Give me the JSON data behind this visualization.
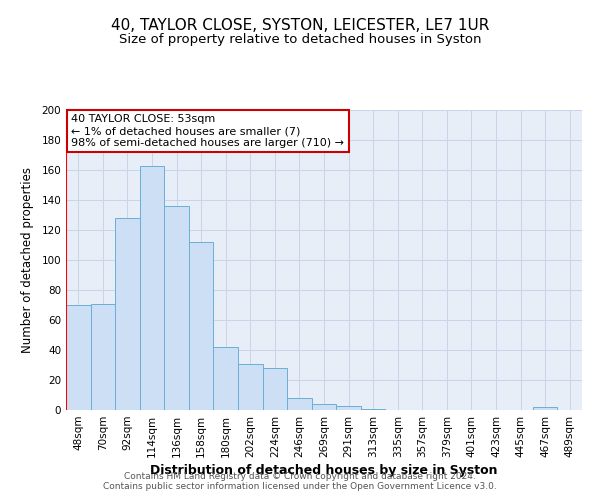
{
  "title": "40, TAYLOR CLOSE, SYSTON, LEICESTER, LE7 1UR",
  "subtitle": "Size of property relative to detached houses in Syston",
  "xlabel": "Distribution of detached houses by size in Syston",
  "ylabel": "Number of detached properties",
  "bar_labels": [
    "48sqm",
    "70sqm",
    "92sqm",
    "114sqm",
    "136sqm",
    "158sqm",
    "180sqm",
    "202sqm",
    "224sqm",
    "246sqm",
    "269sqm",
    "291sqm",
    "313sqm",
    "335sqm",
    "357sqm",
    "379sqm",
    "401sqm",
    "423sqm",
    "445sqm",
    "467sqm",
    "489sqm"
  ],
  "bar_values": [
    70,
    71,
    128,
    163,
    136,
    112,
    42,
    31,
    28,
    8,
    4,
    3,
    1,
    0,
    0,
    0,
    0,
    0,
    0,
    2,
    0
  ],
  "bar_color": "#ccdff5",
  "bar_edge_color": "#6baed6",
  "ylim": [
    0,
    200
  ],
  "yticks": [
    0,
    20,
    40,
    60,
    80,
    100,
    120,
    140,
    160,
    180,
    200
  ],
  "annotation_title": "40 TAYLOR CLOSE: 53sqm",
  "annotation_line1": "← 1% of detached houses are smaller (7)",
  "annotation_line2": "98% of semi-detached houses are larger (710) →",
  "annotation_box_color": "#ffffff",
  "annotation_box_edge_color": "#cc0000",
  "grid_color": "#c8d4e8",
  "background_color": "#e8eef8",
  "footer1": "Contains HM Land Registry data © Crown copyright and database right 2024.",
  "footer2": "Contains public sector information licensed under the Open Government Licence v3.0.",
  "title_fontsize": 11,
  "subtitle_fontsize": 9.5,
  "xlabel_fontsize": 9,
  "ylabel_fontsize": 8.5,
  "tick_fontsize": 7.5,
  "footer_fontsize": 6.5,
  "ann_fontsize": 8
}
